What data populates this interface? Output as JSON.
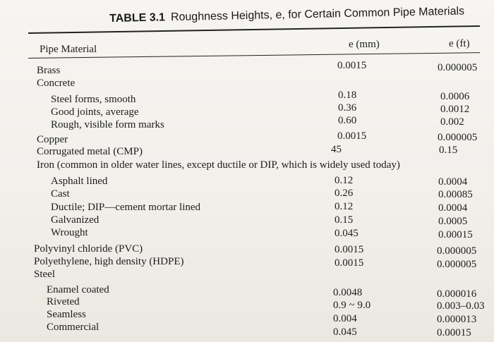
{
  "caption": {
    "number": "TABLE 3.1",
    "title": "Roughness Heights, e, for Certain Common Pipe Materials"
  },
  "headers": {
    "material": "Pipe Material",
    "e_mm": "e (mm)",
    "e_ft": "e (ft)"
  },
  "rows": [
    {
      "material": "Brass",
      "e_mm": "0.0015",
      "e_ft": "0.000005"
    },
    {
      "material": "Concrete",
      "e_mm": "",
      "e_ft": ""
    },
    {
      "material": "Steel forms, smooth",
      "e_mm": "0.18",
      "e_ft": "0.0006"
    },
    {
      "material": "Good joints, average",
      "e_mm": "0.36",
      "e_ft": "0.0012"
    },
    {
      "material": "Rough, visible form marks",
      "e_mm": "0.60",
      "e_ft": "0.002"
    },
    {
      "material": "Copper",
      "e_mm": "0.0015",
      "e_ft": "0.000005"
    },
    {
      "material": "Corrugated metal (CMP)",
      "e_mm": "45",
      "e_ft": "0.15"
    },
    {
      "material": "Iron (common in older water lines, except ductile or DIP, which is widely used today)",
      "e_mm": "",
      "e_ft": ""
    },
    {
      "material": "Asphalt lined",
      "e_mm": "0.12",
      "e_ft": "0.0004"
    },
    {
      "material": "Cast",
      "e_mm": "0.26",
      "e_ft": "0.00085"
    },
    {
      "material": "Ductile; DIP—cement mortar lined",
      "e_mm": "0.12",
      "e_ft": "0.0004"
    },
    {
      "material": "Galvanized",
      "e_mm": "0.15",
      "e_ft": "0.0005"
    },
    {
      "material": "Wrought",
      "e_mm": "0.045",
      "e_ft": "0.00015"
    },
    {
      "material": "Polyvinyl chloride (PVC)",
      "e_mm": "0.0015",
      "e_ft": "0.000005"
    },
    {
      "material": "Polyethylene, high density (HDPE)",
      "e_mm": "0.0015",
      "e_ft": "0.000005"
    },
    {
      "material": "Steel",
      "e_mm": "",
      "e_ft": ""
    },
    {
      "material": "Enamel coated",
      "e_mm": "0.0048",
      "e_ft": "0.000016"
    },
    {
      "material": "Riveted",
      "e_mm": "0.9 ~ 9.0",
      "e_ft": "0.003–0.03"
    },
    {
      "material": "Seamless",
      "e_mm": "0.004",
      "e_ft": "0.000013"
    },
    {
      "material": "Commercial",
      "e_mm": "0.045",
      "e_ft": "0.00015"
    }
  ]
}
